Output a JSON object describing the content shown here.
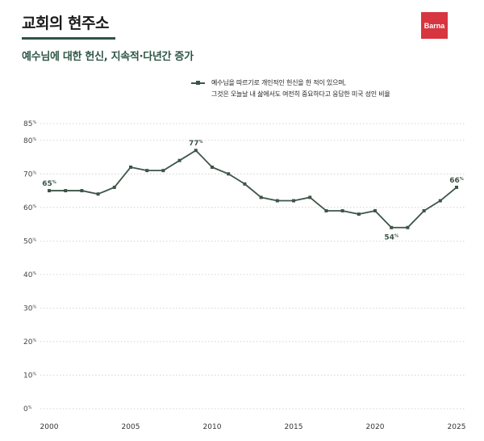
{
  "header": {
    "title": "교회의 현주소",
    "brand": "Barna"
  },
  "subtitle": "예수님에 대한 헌신, 지속적·다년간 증가",
  "legend": {
    "line1": "예수님을 따르기로 개인적인 헌신을 한 적이 있으며,",
    "line2": "그것은 오늘날 내 삶에서도 여전히 중요하다고 응답한 미국 성인 비율"
  },
  "colors": {
    "accent": "#2d5545",
    "line": "#3d5548",
    "brand": "#d7353f",
    "grid": "#c9c9c9"
  },
  "chart_data": {
    "type": "line",
    "x": [
      2000,
      2001,
      2002,
      2003,
      2004,
      2005,
      2006,
      2007,
      2008,
      2009,
      2010,
      2011,
      2012,
      2013,
      2014,
      2015,
      2016,
      2017,
      2018,
      2019,
      2020,
      2021,
      2022,
      2023,
      2024,
      2025
    ],
    "series": [
      {
        "values": [
          65,
          65,
          65,
          64,
          66,
          72,
          71,
          71,
          74,
          77,
          72,
          70,
          67,
          63,
          62,
          62,
          63,
          59,
          59,
          58,
          59,
          54,
          54,
          59,
          62,
          66
        ]
      }
    ],
    "x_ticks": [
      "2000",
      "2005",
      "2010",
      "2015",
      "2020",
      "2025"
    ],
    "y_ticks": [
      "0",
      "10",
      "20",
      "30",
      "40",
      "50",
      "60",
      "70",
      "80",
      "85"
    ],
    "y_unit": "%",
    "ylim": [
      0,
      85
    ],
    "xlim": [
      2000,
      2025
    ],
    "grid": true,
    "legend_position": "top-right",
    "annotations": [
      {
        "x": 2000,
        "value": "65",
        "unit": "%",
        "pos": "above"
      },
      {
        "x": 2009,
        "value": "77",
        "unit": "%",
        "pos": "above"
      },
      {
        "x": 2021,
        "value": "54",
        "unit": "%",
        "pos": "below"
      },
      {
        "x": 2025,
        "value": "66",
        "unit": "%",
        "pos": "above"
      }
    ]
  }
}
